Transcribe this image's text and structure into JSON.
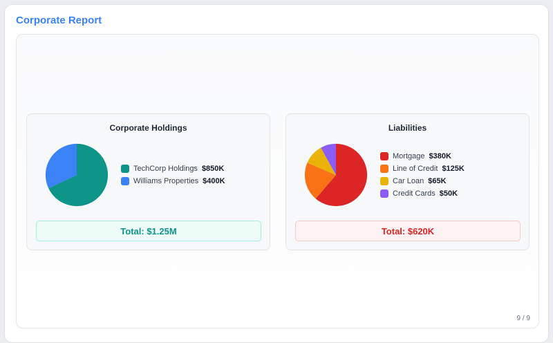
{
  "report": {
    "title": "Corporate Report",
    "page_indicator": "9 / 9"
  },
  "chart_data": [
    {
      "type": "pie",
      "title": "Corporate Holdings",
      "categories": [
        "TechCorp Holdings",
        "Williams Properties"
      ],
      "values": [
        850,
        400
      ],
      "value_labels": [
        "$850K",
        "$400K"
      ],
      "colors": [
        "#0f9488",
        "#3b82f6"
      ],
      "total_label": "Total: $1.25M",
      "total_style": "green"
    },
    {
      "type": "pie",
      "title": "Liabilities",
      "categories": [
        "Mortgage",
        "Line of Credit",
        "Car Loan",
        "Credit Cards"
      ],
      "values": [
        380,
        125,
        65,
        50
      ],
      "value_labels": [
        "$380K",
        "$125K",
        "$65K",
        "$50K"
      ],
      "colors": [
        "#dc2626",
        "#f97316",
        "#eab308",
        "#8b5cf6"
      ],
      "total_label": "Total: $620K",
      "total_style": "red"
    }
  ]
}
